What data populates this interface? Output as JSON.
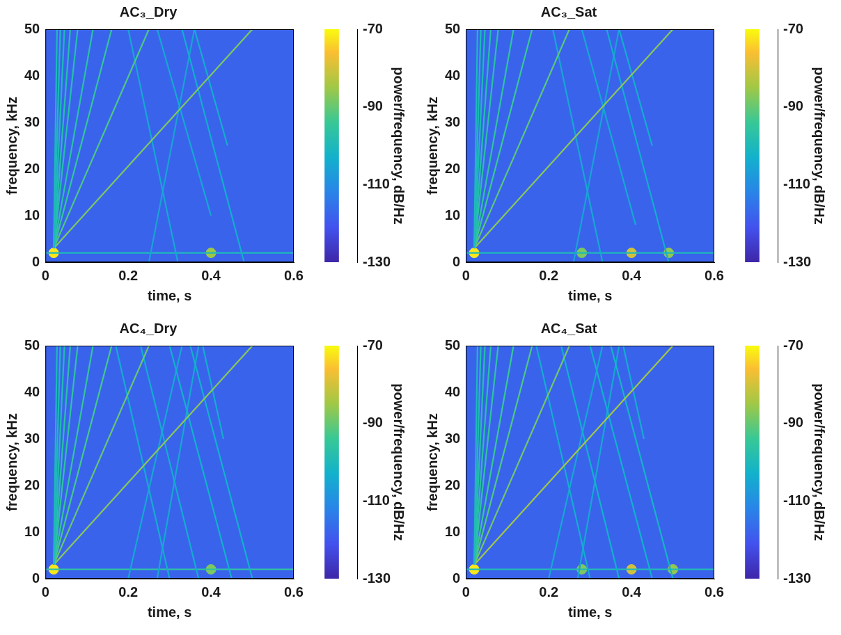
{
  "chart_data": [
    {
      "type": "spectrogram",
      "title": "AC₃_Dry",
      "x_label": "time, s",
      "y_label": "frequency, kHz",
      "xlim": [
        0,
        0.6
      ],
      "xticks": [
        0,
        0.2,
        0.4,
        0.6
      ],
      "ylim": [
        0,
        50
      ],
      "yticks": [
        0,
        10,
        20,
        30,
        40,
        50
      ],
      "grid": false,
      "colorbar": {
        "range": [
          -130,
          -70
        ],
        "ticks": [
          -130,
          -110,
          -90,
          -70
        ],
        "label": "power/frequency, dB/Hz"
      },
      "noise_floor": -118,
      "series": [
        {
          "x": [
            0.02,
            0.028
          ],
          "values": [
            3,
            50
          ],
          "level": -100,
          "line_style": "solid"
        },
        {
          "x": [
            0.02,
            0.036
          ],
          "values": [
            3,
            50
          ],
          "level": -100,
          "line_style": "solid"
        },
        {
          "x": [
            0.02,
            0.046
          ],
          "values": [
            3,
            50
          ],
          "level": -100,
          "line_style": "solid"
        },
        {
          "x": [
            0.02,
            0.06
          ],
          "values": [
            3,
            50
          ],
          "level": -98,
          "line_style": "solid"
        },
        {
          "x": [
            0.02,
            0.078
          ],
          "values": [
            3,
            50
          ],
          "level": -98,
          "line_style": "solid"
        },
        {
          "x": [
            0.02,
            0.115
          ],
          "values": [
            3,
            50
          ],
          "level": -97,
          "line_style": "solid"
        },
        {
          "x": [
            0.02,
            0.16
          ],
          "values": [
            3,
            50
          ],
          "level": -95,
          "line_style": "solid"
        },
        {
          "x": [
            0.02,
            0.25
          ],
          "values": [
            3,
            50
          ],
          "level": -92,
          "line_style": "solid"
        },
        {
          "x": [
            0.02,
            0.5
          ],
          "values": [
            3,
            50
          ],
          "level": -88,
          "line_style": "solid"
        },
        {
          "x": [
            0.2,
            0.32
          ],
          "values": [
            50,
            0
          ],
          "level": -105,
          "line_style": "solid"
        },
        {
          "x": [
            0.27,
            0.4
          ],
          "values": [
            50,
            10
          ],
          "level": -105,
          "line_style": "solid"
        },
        {
          "x": [
            0.33,
            0.48
          ],
          "values": [
            50,
            0
          ],
          "level": -104,
          "line_style": "solid"
        },
        {
          "x": [
            0.36,
            0.44
          ],
          "values": [
            50,
            25
          ],
          "level": -104,
          "line_style": "solid"
        },
        {
          "x": [
            0.25,
            0.36
          ],
          "values": [
            0,
            50
          ],
          "level": -106,
          "line_style": "solid"
        },
        {
          "x": [
            0,
            0.6
          ],
          "values": [
            2,
            2
          ],
          "level": -100,
          "line_style": "solid"
        },
        {
          "x": [
            0.02
          ],
          "values": [
            2
          ],
          "level": -72,
          "marker": "circle"
        },
        {
          "x": [
            0.4
          ],
          "values": [
            2
          ],
          "level": -85,
          "marker": "circle"
        }
      ]
    },
    {
      "type": "spectrogram",
      "title": "AC₃_Sat",
      "x_label": "time, s",
      "y_label": "frequency, kHz",
      "xlim": [
        0,
        0.6
      ],
      "xticks": [
        0,
        0.2,
        0.4,
        0.6
      ],
      "ylim": [
        0,
        50
      ],
      "yticks": [
        0,
        10,
        20,
        30,
        40,
        50
      ],
      "grid": false,
      "colorbar": {
        "range": [
          -130,
          -70
        ],
        "ticks": [
          -130,
          -110,
          -90,
          -70
        ],
        "label": "power/frequency, dB/Hz"
      },
      "noise_floor": -118,
      "series": [
        {
          "x": [
            0.02,
            0.028
          ],
          "values": [
            3,
            50
          ],
          "level": -100,
          "line_style": "solid"
        },
        {
          "x": [
            0.02,
            0.036
          ],
          "values": [
            3,
            50
          ],
          "level": -100,
          "line_style": "solid"
        },
        {
          "x": [
            0.02,
            0.046
          ],
          "values": [
            3,
            50
          ],
          "level": -100,
          "line_style": "solid"
        },
        {
          "x": [
            0.02,
            0.06
          ],
          "values": [
            3,
            50
          ],
          "level": -98,
          "line_style": "solid"
        },
        {
          "x": [
            0.02,
            0.078
          ],
          "values": [
            3,
            50
          ],
          "level": -97,
          "line_style": "solid"
        },
        {
          "x": [
            0.02,
            0.115
          ],
          "values": [
            3,
            50
          ],
          "level": -96,
          "line_style": "solid"
        },
        {
          "x": [
            0.02,
            0.16
          ],
          "values": [
            3,
            50
          ],
          "level": -94,
          "line_style": "solid"
        },
        {
          "x": [
            0.02,
            0.25
          ],
          "values": [
            3,
            50
          ],
          "level": -91,
          "line_style": "solid"
        },
        {
          "x": [
            0.02,
            0.5
          ],
          "values": [
            3,
            50
          ],
          "level": -87,
          "line_style": "solid"
        },
        {
          "x": [
            0.21,
            0.33
          ],
          "values": [
            50,
            0
          ],
          "level": -105,
          "line_style": "solid"
        },
        {
          "x": [
            0.28,
            0.41
          ],
          "values": [
            50,
            8
          ],
          "level": -105,
          "line_style": "solid"
        },
        {
          "x": [
            0.34,
            0.49
          ],
          "values": [
            50,
            0
          ],
          "level": -104,
          "line_style": "solid"
        },
        {
          "x": [
            0.37,
            0.45
          ],
          "values": [
            50,
            25
          ],
          "level": -104,
          "line_style": "solid"
        },
        {
          "x": [
            0.26,
            0.37
          ],
          "values": [
            0,
            50
          ],
          "level": -106,
          "line_style": "solid"
        },
        {
          "x": [
            0,
            0.6
          ],
          "values": [
            2,
            2
          ],
          "level": -100,
          "line_style": "solid"
        },
        {
          "x": [
            0.02
          ],
          "values": [
            2
          ],
          "level": -72,
          "marker": "circle"
        },
        {
          "x": [
            0.28
          ],
          "values": [
            2
          ],
          "level": -88,
          "marker": "circle"
        },
        {
          "x": [
            0.4
          ],
          "values": [
            2
          ],
          "level": -80,
          "marker": "circle"
        },
        {
          "x": [
            0.49
          ],
          "values": [
            2
          ],
          "level": -86,
          "marker": "circle"
        }
      ]
    },
    {
      "type": "spectrogram",
      "title": "AC₄_Dry",
      "x_label": "time, s",
      "y_label": "frequency, kHz",
      "xlim": [
        0,
        0.6
      ],
      "xticks": [
        0,
        0.2,
        0.4,
        0.6
      ],
      "ylim": [
        0,
        50
      ],
      "yticks": [
        0,
        10,
        20,
        30,
        40,
        50
      ],
      "grid": false,
      "colorbar": {
        "range": [
          -130,
          -70
        ],
        "ticks": [
          -130,
          -110,
          -90,
          -70
        ],
        "label": "power/frequency, dB/Hz"
      },
      "noise_floor": -118,
      "series": [
        {
          "x": [
            0.02,
            0.028
          ],
          "values": [
            3,
            50
          ],
          "level": -100,
          "line_style": "solid"
        },
        {
          "x": [
            0.02,
            0.036
          ],
          "values": [
            3,
            50
          ],
          "level": -100,
          "line_style": "solid"
        },
        {
          "x": [
            0.02,
            0.046
          ],
          "values": [
            3,
            50
          ],
          "level": -99,
          "line_style": "solid"
        },
        {
          "x": [
            0.02,
            0.06
          ],
          "values": [
            3,
            50
          ],
          "level": -97,
          "line_style": "solid"
        },
        {
          "x": [
            0.02,
            0.078
          ],
          "values": [
            3,
            50
          ],
          "level": -96,
          "line_style": "solid"
        },
        {
          "x": [
            0.02,
            0.115
          ],
          "values": [
            3,
            50
          ],
          "level": -95,
          "line_style": "solid"
        },
        {
          "x": [
            0.02,
            0.16
          ],
          "values": [
            3,
            50
          ],
          "level": -93,
          "line_style": "solid"
        },
        {
          "x": [
            0.02,
            0.25
          ],
          "values": [
            3,
            50
          ],
          "level": -90,
          "line_style": "solid"
        },
        {
          "x": [
            0.02,
            0.5
          ],
          "values": [
            3,
            50
          ],
          "level": -87,
          "line_style": "solid"
        },
        {
          "x": [
            0.17,
            0.3
          ],
          "values": [
            50,
            0
          ],
          "level": -104,
          "line_style": "solid"
        },
        {
          "x": [
            0.23,
            0.37
          ],
          "values": [
            50,
            0
          ],
          "level": -104,
          "line_style": "solid"
        },
        {
          "x": [
            0.3,
            0.45
          ],
          "values": [
            50,
            0
          ],
          "level": -103,
          "line_style": "solid"
        },
        {
          "x": [
            0.35,
            0.5
          ],
          "values": [
            50,
            0
          ],
          "level": -103,
          "line_style": "solid"
        },
        {
          "x": [
            0.38,
            0.43
          ],
          "values": [
            50,
            30
          ],
          "level": -104,
          "line_style": "solid"
        },
        {
          "x": [
            0.2,
            0.33
          ],
          "values": [
            0,
            50
          ],
          "level": -105,
          "line_style": "solid"
        },
        {
          "x": [
            0.27,
            0.37
          ],
          "values": [
            0,
            50
          ],
          "level": -105,
          "line_style": "solid"
        },
        {
          "x": [
            0,
            0.6
          ],
          "values": [
            2,
            2
          ],
          "level": -96,
          "line_style": "solid"
        },
        {
          "x": [
            0.02
          ],
          "values": [
            2
          ],
          "level": -72,
          "marker": "circle"
        },
        {
          "x": [
            0.4
          ],
          "values": [
            2
          ],
          "level": -88,
          "marker": "circle"
        }
      ]
    },
    {
      "type": "spectrogram",
      "title": "AC₄_Sat",
      "x_label": "time, s",
      "y_label": "frequency, kHz",
      "xlim": [
        0,
        0.6
      ],
      "xticks": [
        0,
        0.2,
        0.4,
        0.6
      ],
      "ylim": [
        0,
        50
      ],
      "yticks": [
        0,
        10,
        20,
        30,
        40,
        50
      ],
      "grid": false,
      "colorbar": {
        "range": [
          -130,
          -70
        ],
        "ticks": [
          -130,
          -110,
          -90,
          -70
        ],
        "label": "power/frequency, dB/Hz"
      },
      "noise_floor": -118,
      "series": [
        {
          "x": [
            0.02,
            0.028
          ],
          "values": [
            3,
            50
          ],
          "level": -100,
          "line_style": "solid"
        },
        {
          "x": [
            0.02,
            0.036
          ],
          "values": [
            3,
            50
          ],
          "level": -99,
          "line_style": "solid"
        },
        {
          "x": [
            0.02,
            0.046
          ],
          "values": [
            3,
            50
          ],
          "level": -98,
          "line_style": "solid"
        },
        {
          "x": [
            0.02,
            0.06
          ],
          "values": [
            3,
            50
          ],
          "level": -97,
          "line_style": "solid"
        },
        {
          "x": [
            0.02,
            0.078
          ],
          "values": [
            3,
            50
          ],
          "level": -96,
          "line_style": "solid"
        },
        {
          "x": [
            0.02,
            0.115
          ],
          "values": [
            3,
            50
          ],
          "level": -94,
          "line_style": "solid"
        },
        {
          "x": [
            0.02,
            0.16
          ],
          "values": [
            3,
            50
          ],
          "level": -92,
          "line_style": "solid"
        },
        {
          "x": [
            0.02,
            0.25
          ],
          "values": [
            3,
            50
          ],
          "level": -89,
          "line_style": "solid"
        },
        {
          "x": [
            0.02,
            0.5
          ],
          "values": [
            3,
            50
          ],
          "level": -85,
          "line_style": "solid"
        },
        {
          "x": [
            0.17,
            0.3
          ],
          "values": [
            50,
            0
          ],
          "level": -104,
          "line_style": "solid"
        },
        {
          "x": [
            0.23,
            0.37
          ],
          "values": [
            50,
            0
          ],
          "level": -103,
          "line_style": "solid"
        },
        {
          "x": [
            0.3,
            0.45
          ],
          "values": [
            50,
            0
          ],
          "level": -103,
          "line_style": "solid"
        },
        {
          "x": [
            0.35,
            0.5
          ],
          "values": [
            50,
            0
          ],
          "level": -102,
          "line_style": "solid"
        },
        {
          "x": [
            0.38,
            0.43
          ],
          "values": [
            50,
            30
          ],
          "level": -104,
          "line_style": "solid"
        },
        {
          "x": [
            0.2,
            0.33
          ],
          "values": [
            0,
            50
          ],
          "level": -105,
          "line_style": "solid"
        },
        {
          "x": [
            0.27,
            0.37
          ],
          "values": [
            0,
            50
          ],
          "level": -105,
          "line_style": "solid"
        },
        {
          "x": [
            0,
            0.6
          ],
          "values": [
            2,
            2
          ],
          "level": -99,
          "line_style": "solid"
        },
        {
          "x": [
            0.02
          ],
          "values": [
            2
          ],
          "level": -72,
          "marker": "circle"
        },
        {
          "x": [
            0.28
          ],
          "values": [
            2
          ],
          "level": -88,
          "marker": "circle"
        },
        {
          "x": [
            0.4
          ],
          "values": [
            2
          ],
          "level": -80,
          "marker": "circle"
        },
        {
          "x": [
            0.5
          ],
          "values": [
            2
          ],
          "level": -86,
          "marker": "circle"
        }
      ]
    }
  ]
}
